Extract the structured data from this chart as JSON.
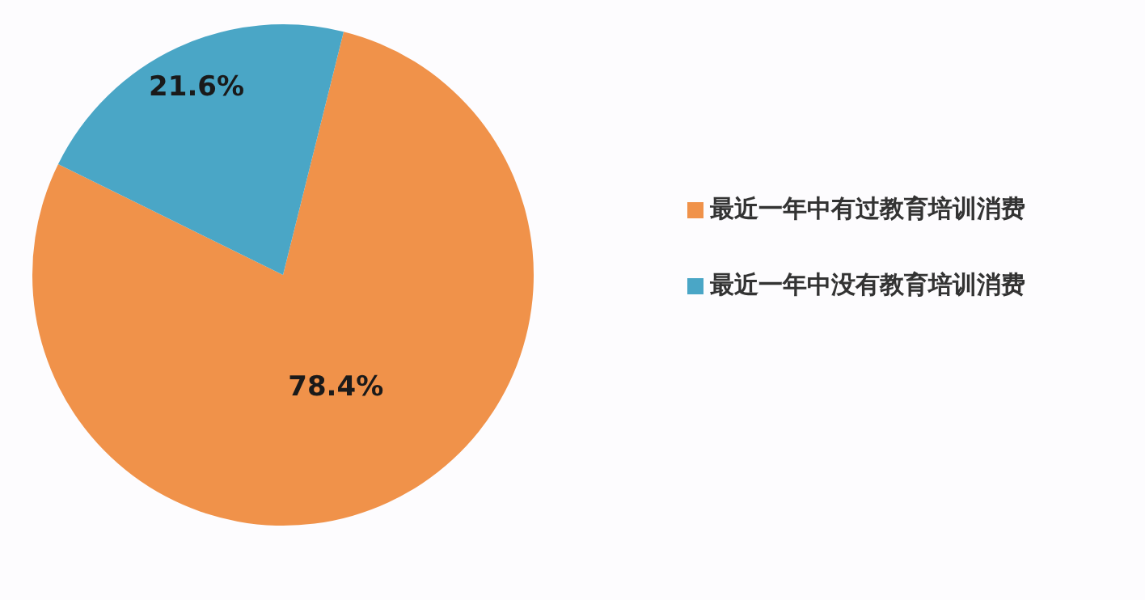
{
  "chart_data": {
    "type": "pie",
    "categories": [
      "最近一年中有过教育培训消费",
      "最近一年中没有教育培训消费"
    ],
    "values": [
      78.4,
      21.6
    ],
    "colors": [
      "#f0924a",
      "#4aa6c6"
    ],
    "value_labels": [
      "78.4%",
      "21.6%"
    ],
    "legend": "right"
  }
}
